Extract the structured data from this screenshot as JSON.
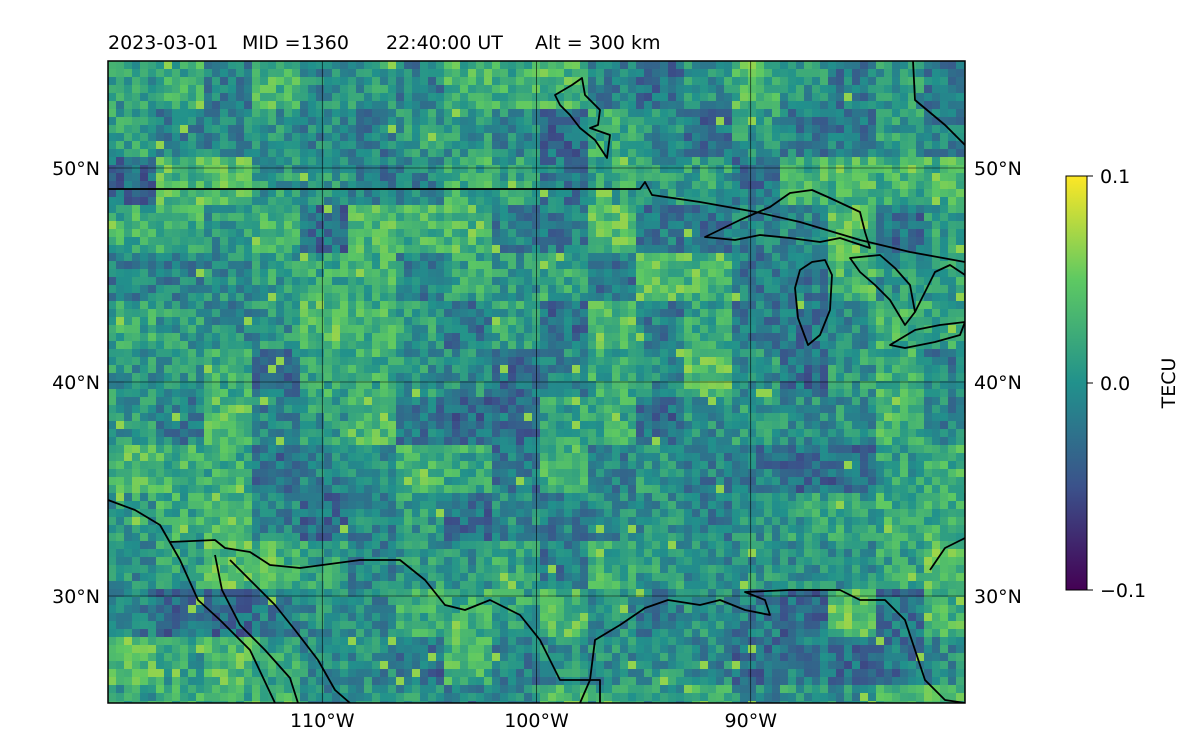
{
  "title": {
    "date": "2023-03-01",
    "mid": "MID =1360",
    "time": "22:40:00  UT",
    "alt": "Alt = 300 km"
  },
  "map": {
    "lat_labels": [
      {
        "lat": 50,
        "text": "50°N"
      },
      {
        "lat": 40,
        "text": "40°N"
      },
      {
        "lat": 30,
        "text": "30°N"
      }
    ],
    "lon_labels": [
      {
        "lon": -110,
        "text": "110°W"
      },
      {
        "lon": -100,
        "text": "100°W"
      },
      {
        "lon": -90,
        "text": "90°W"
      }
    ],
    "extent": {
      "lon_min": -120,
      "lon_max": -80,
      "lat_min": 25,
      "lat_max": 55
    }
  },
  "colorbar": {
    "label": "TECU",
    "ticks": [
      {
        "value": 0.1,
        "text": "0.1"
      },
      {
        "value": 0.0,
        "text": "0.0"
      },
      {
        "value": -0.1,
        "text": "−0.1"
      }
    ],
    "range": [
      -0.1,
      0.1
    ],
    "colormap": [
      "#440154",
      "#3b528b",
      "#21918c",
      "#5ec962",
      "#fde725"
    ]
  }
}
